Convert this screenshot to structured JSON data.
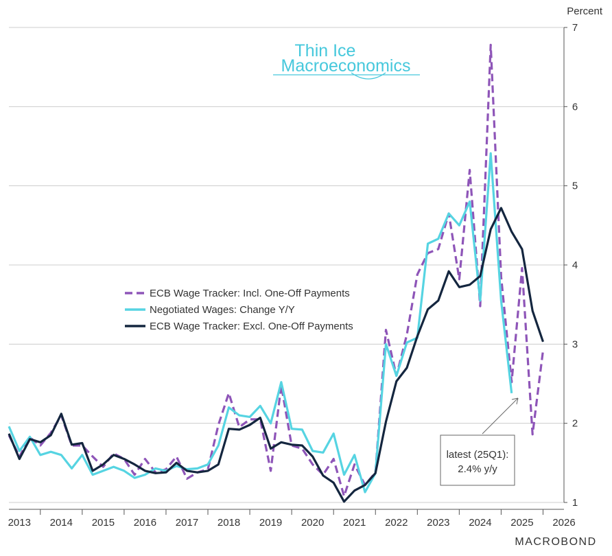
{
  "logo": {
    "line1": "Thin Ice",
    "line2": "Macroeconomics",
    "color": "#46c8dc"
  },
  "brand": "MACROBOND",
  "chart_data": {
    "type": "line",
    "title": "",
    "unit_label": "Percent",
    "xlabel": "",
    "ylabel": "Percent",
    "ylim": [
      1,
      7
    ],
    "yticks": [
      1,
      2,
      3,
      4,
      5,
      6,
      7
    ],
    "xlim": [
      2013,
      2026.25
    ],
    "xtick_labels": [
      "2013",
      "2014",
      "2015",
      "2016",
      "2017",
      "2018",
      "2019",
      "2020",
      "2021",
      "2022",
      "2023",
      "2024",
      "2025",
      "2026"
    ],
    "grid": true,
    "legend_position": "center-left",
    "series": [
      {
        "name": "ECB Wage Tracker: Incl. One-Off Payments",
        "color": "#8e55b8",
        "style": "dashed",
        "x": [
          2013.0,
          2013.25,
          2013.5,
          2013.75,
          2014.0,
          2014.25,
          2014.5,
          2014.75,
          2015.0,
          2015.25,
          2015.5,
          2015.75,
          2016.0,
          2016.25,
          2016.5,
          2016.75,
          2017.0,
          2017.25,
          2017.5,
          2017.75,
          2018.0,
          2018.25,
          2018.5,
          2018.75,
          2019.0,
          2019.25,
          2019.5,
          2019.75,
          2020.0,
          2020.25,
          2020.5,
          2020.75,
          2021.0,
          2021.25,
          2021.5,
          2021.75,
          2022.0,
          2022.25,
          2022.5,
          2022.75,
          2023.0,
          2023.25,
          2023.5,
          2023.75,
          2024.0,
          2024.25,
          2024.5,
          2024.75,
          2025.0,
          2025.25,
          2025.5,
          2025.75
        ],
        "values": [
          1.85,
          1.58,
          1.82,
          1.72,
          1.88,
          2.1,
          1.72,
          1.72,
          1.58,
          1.45,
          1.62,
          1.55,
          1.35,
          1.55,
          1.38,
          1.42,
          1.58,
          1.3,
          1.38,
          1.42,
          1.98,
          2.38,
          1.95,
          2.05,
          2.05,
          1.4,
          2.48,
          1.72,
          1.68,
          1.48,
          1.35,
          1.55,
          1.08,
          1.48,
          1.22,
          1.38,
          3.18,
          2.6,
          3.12,
          3.88,
          4.15,
          4.2,
          4.65,
          3.82,
          5.2,
          3.48,
          6.78,
          3.85,
          2.52,
          3.96,
          1.86,
          2.92
        ]
      },
      {
        "name": "Negotiated Wages: Change Y/Y",
        "color": "#56d4e2",
        "style": "solid",
        "x": [
          2013.0,
          2013.25,
          2013.5,
          2013.75,
          2014.0,
          2014.25,
          2014.5,
          2014.75,
          2015.0,
          2015.25,
          2015.5,
          2015.75,
          2016.0,
          2016.25,
          2016.5,
          2016.75,
          2017.0,
          2017.25,
          2017.5,
          2017.75,
          2018.0,
          2018.25,
          2018.5,
          2018.75,
          2019.0,
          2019.25,
          2019.5,
          2019.75,
          2020.0,
          2020.25,
          2020.5,
          2020.75,
          2021.0,
          2021.25,
          2021.5,
          2021.75,
          2022.0,
          2022.25,
          2022.5,
          2022.75,
          2023.0,
          2023.25,
          2023.5,
          2023.75,
          2024.0,
          2024.25,
          2024.5,
          2024.75,
          2025.0
        ],
        "values": [
          1.96,
          1.65,
          1.83,
          1.6,
          1.64,
          1.6,
          1.43,
          1.6,
          1.35,
          1.4,
          1.45,
          1.4,
          1.31,
          1.35,
          1.43,
          1.4,
          1.46,
          1.42,
          1.43,
          1.48,
          1.72,
          2.2,
          2.1,
          2.08,
          2.22,
          2.0,
          2.52,
          1.93,
          1.92,
          1.65,
          1.63,
          1.87,
          1.35,
          1.6,
          1.13,
          1.37,
          3.0,
          2.6,
          3.02,
          3.08,
          4.27,
          4.33,
          4.65,
          4.5,
          4.8,
          3.55,
          5.41,
          3.55,
          2.38
        ]
      },
      {
        "name": "ECB Wage Tracker: Excl. One-Off Payments",
        "color": "#14263f",
        "style": "solid",
        "x": [
          2013.0,
          2013.25,
          2013.5,
          2013.75,
          2014.0,
          2014.25,
          2014.5,
          2014.75,
          2015.0,
          2015.25,
          2015.5,
          2015.75,
          2016.0,
          2016.25,
          2016.5,
          2016.75,
          2017.0,
          2017.25,
          2017.5,
          2017.75,
          2018.0,
          2018.25,
          2018.5,
          2018.75,
          2019.0,
          2019.25,
          2019.5,
          2019.75,
          2020.0,
          2020.25,
          2020.5,
          2020.75,
          2021.0,
          2021.25,
          2021.5,
          2021.75,
          2022.0,
          2022.25,
          2022.5,
          2022.75,
          2023.0,
          2023.25,
          2023.5,
          2023.75,
          2024.0,
          2024.25,
          2024.5,
          2024.75,
          2025.0,
          2025.25,
          2025.5,
          2025.75
        ],
        "values": [
          1.87,
          1.55,
          1.8,
          1.76,
          1.85,
          2.12,
          1.73,
          1.75,
          1.4,
          1.48,
          1.6,
          1.55,
          1.48,
          1.4,
          1.37,
          1.38,
          1.5,
          1.4,
          1.38,
          1.4,
          1.48,
          1.93,
          1.92,
          1.98,
          2.07,
          1.68,
          1.76,
          1.73,
          1.72,
          1.58,
          1.34,
          1.25,
          1.01,
          1.15,
          1.22,
          1.37,
          2.02,
          2.53,
          2.7,
          3.1,
          3.44,
          3.55,
          3.92,
          3.72,
          3.75,
          3.86,
          4.45,
          4.72,
          4.42,
          4.2,
          3.42,
          3.03
        ]
      }
    ],
    "annotation": {
      "lines": [
        "latest (25Q1):",
        "2.4% y/y"
      ]
    }
  }
}
